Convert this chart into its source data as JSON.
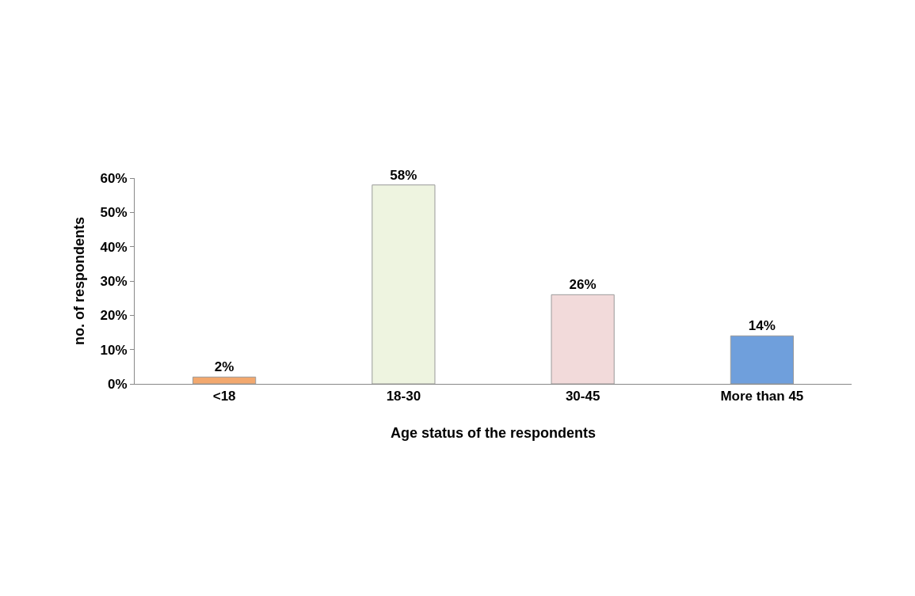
{
  "chart_data": {
    "type": "bar",
    "xlabel": "Age status of the respondents",
    "ylabel": "no. of respondents",
    "categories": [
      "<18",
      "18-30",
      "30-45",
      "More than 45"
    ],
    "values": [
      2,
      58,
      26,
      14
    ],
    "colors": [
      "#f2a86e",
      "#eef4e0",
      "#f2dada",
      "#6f9fdc"
    ],
    "value_labels": [
      "2%",
      "58%",
      "26%",
      "14%"
    ],
    "ylim": [
      0,
      60
    ],
    "yticks": [
      {
        "value": 0,
        "label": "0%"
      },
      {
        "value": 10,
        "label": "10%"
      },
      {
        "value": 20,
        "label": "20%"
      },
      {
        "value": 30,
        "label": "30%"
      },
      {
        "value": 40,
        "label": "40%"
      },
      {
        "value": 50,
        "label": "50%"
      },
      {
        "value": 60,
        "label": "60%"
      }
    ],
    "relative": false
  }
}
